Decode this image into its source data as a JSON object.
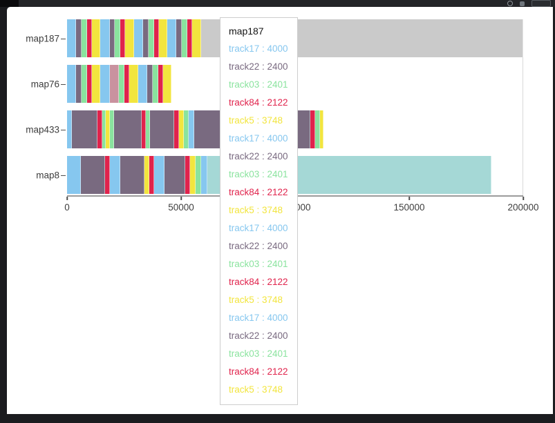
{
  "window": {
    "toolbar": {
      "icons": [
        "search-icon",
        "profile-icon",
        "menu-icon"
      ]
    }
  },
  "chart_data": {
    "type": "bar",
    "orientation": "horizontal",
    "title": "",
    "xlabel": "",
    "ylabel": "",
    "xlim": [
      0,
      200000
    ],
    "grid": "minimal",
    "legend": "none",
    "categories": [
      "map187",
      "map76",
      "map433",
      "map8"
    ],
    "x_ticks": [
      {
        "v": 0,
        "label": "0"
      },
      {
        "v": 50000,
        "label": "50000"
      },
      {
        "v": 100000,
        "label": "100000"
      },
      {
        "v": 150000,
        "label": "150000"
      },
      {
        "v": 200000,
        "label": "200000"
      }
    ],
    "palette": {
      "blue": "#86C7EF",
      "purple": "#796A80",
      "green": "#8AE39E",
      "red": "#E0234C",
      "yellow": "#F2E53E",
      "gray": "#CACACA",
      "teal": "#A5D8D6",
      "rose": "#C9929F"
    },
    "color_tracks": {
      "blue": "track17",
      "purple": "track22",
      "green": "track03",
      "red": "track84",
      "yellow": "track5"
    },
    "bars": [
      {
        "map": "map187",
        "segments": [
          {
            "c": "blue",
            "v": 4000
          },
          {
            "c": "purple",
            "v": 2400
          },
          {
            "c": "green",
            "v": 2401
          },
          {
            "c": "red",
            "v": 2122
          },
          {
            "c": "yellow",
            "v": 3748
          },
          {
            "c": "blue",
            "v": 4000
          },
          {
            "c": "purple",
            "v": 2400
          },
          {
            "c": "green",
            "v": 2401
          },
          {
            "c": "red",
            "v": 2122
          },
          {
            "c": "yellow",
            "v": 3748
          },
          {
            "c": "blue",
            "v": 4000
          },
          {
            "c": "purple",
            "v": 2400
          },
          {
            "c": "green",
            "v": 2401
          },
          {
            "c": "red",
            "v": 2122
          },
          {
            "c": "yellow",
            "v": 3748
          },
          {
            "c": "blue",
            "v": 4000
          },
          {
            "c": "purple",
            "v": 2400
          },
          {
            "c": "green",
            "v": 2401
          },
          {
            "c": "red",
            "v": 2122
          },
          {
            "c": "yellow",
            "v": 3748
          },
          {
            "c": "gray",
            "v": 141316
          }
        ]
      },
      {
        "map": "map76",
        "segments": [
          {
            "c": "blue",
            "v": 4000
          },
          {
            "c": "purple",
            "v": 2400
          },
          {
            "c": "green",
            "v": 2401
          },
          {
            "c": "red",
            "v": 2122
          },
          {
            "c": "yellow",
            "v": 3748
          },
          {
            "c": "blue",
            "v": 4000
          },
          {
            "c": "rose",
            "v": 4200
          },
          {
            "c": "green",
            "v": 2401
          },
          {
            "c": "red",
            "v": 2122
          },
          {
            "c": "yellow",
            "v": 3748
          },
          {
            "c": "blue",
            "v": 4000
          },
          {
            "c": "purple",
            "v": 2400
          },
          {
            "c": "green",
            "v": 2401
          },
          {
            "c": "red",
            "v": 2122
          },
          {
            "c": "yellow",
            "v": 3748
          }
        ]
      },
      {
        "map": "map433",
        "segments": [
          {
            "c": "blue",
            "v": 2100
          },
          {
            "c": "purple",
            "v": 11200
          },
          {
            "c": "red",
            "v": 2100
          },
          {
            "c": "green",
            "v": 1500
          },
          {
            "c": "yellow",
            "v": 1800
          },
          {
            "c": "green",
            "v": 1800
          },
          {
            "c": "purple",
            "v": 12100
          },
          {
            "c": "red",
            "v": 2100
          },
          {
            "c": "green",
            "v": 1800
          },
          {
            "c": "purple",
            "v": 10600
          },
          {
            "c": "red",
            "v": 2100
          },
          {
            "c": "yellow",
            "v": 2100
          },
          {
            "c": "green",
            "v": 2100
          },
          {
            "c": "blue",
            "v": 2400
          },
          {
            "c": "purple",
            "v": 11500
          },
          {
            "c": "red",
            "v": 2100
          },
          {
            "c": "yellow",
            "v": 2100
          },
          {
            "c": "green",
            "v": 1800
          },
          {
            "c": "purple",
            "v": 12000
          },
          {
            "c": "blue",
            "v": 2100
          },
          {
            "c": "red",
            "v": 2100
          },
          {
            "c": "green",
            "v": 1500
          },
          {
            "c": "yellow",
            "v": 2400
          },
          {
            "c": "purple",
            "v": 13400
          },
          {
            "c": "red",
            "v": 2100
          },
          {
            "c": "green",
            "v": 2000
          },
          {
            "c": "yellow",
            "v": 1500
          }
        ]
      },
      {
        "map": "map8",
        "segments": [
          {
            "c": "blue",
            "v": 6000
          },
          {
            "c": "purple",
            "v": 10600
          },
          {
            "c": "red",
            "v": 2100
          },
          {
            "c": "blue",
            "v": 4500
          },
          {
            "c": "purple",
            "v": 10600
          },
          {
            "c": "yellow",
            "v": 2400
          },
          {
            "c": "red",
            "v": 2100
          },
          {
            "c": "blue",
            "v": 4500
          },
          {
            "c": "purple",
            "v": 9000
          },
          {
            "c": "red",
            "v": 2100
          },
          {
            "c": "yellow",
            "v": 2400
          },
          {
            "c": "green",
            "v": 2400
          },
          {
            "c": "blue",
            "v": 3000
          },
          {
            "c": "teal",
            "v": 124300
          }
        ]
      }
    ],
    "tooltip": {
      "title": "map187",
      "entries": [
        {
          "label": "track17 : 4000",
          "color": "blue"
        },
        {
          "label": "track22 : 2400",
          "color": "purple"
        },
        {
          "label": "track03 : 2401",
          "color": "green"
        },
        {
          "label": "track84 : 2122",
          "color": "red"
        },
        {
          "label": "track5 : 3748",
          "color": "yellow"
        },
        {
          "label": "track17 : 4000",
          "color": "blue"
        },
        {
          "label": "track22 : 2400",
          "color": "purple"
        },
        {
          "label": "track03 : 2401",
          "color": "green"
        },
        {
          "label": "track84 : 2122",
          "color": "red"
        },
        {
          "label": "track5 : 3748",
          "color": "yellow"
        },
        {
          "label": "track17 : 4000",
          "color": "blue"
        },
        {
          "label": "track22 : 2400",
          "color": "purple"
        },
        {
          "label": "track03 : 2401",
          "color": "green"
        },
        {
          "label": "track84 : 2122",
          "color": "red"
        },
        {
          "label": "track5 : 3748",
          "color": "yellow"
        },
        {
          "label": "track17 : 4000",
          "color": "blue"
        },
        {
          "label": "track22 : 2400",
          "color": "purple"
        },
        {
          "label": "track03 : 2401",
          "color": "green"
        },
        {
          "label": "track84 : 2122",
          "color": "red"
        },
        {
          "label": "track5 : 3748",
          "color": "yellow"
        }
      ]
    }
  }
}
